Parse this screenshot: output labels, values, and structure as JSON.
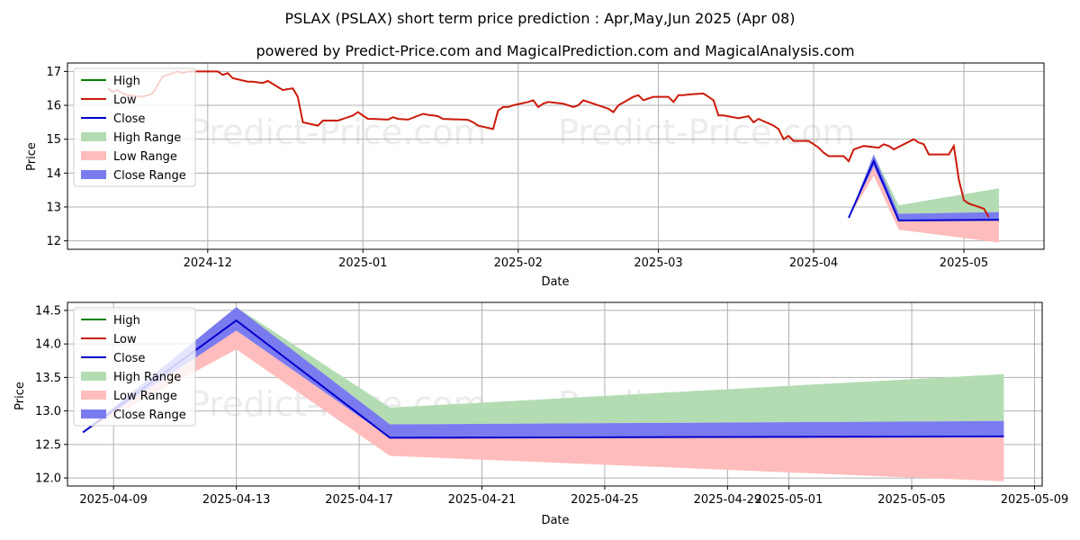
{
  "title": "PSLAX (PSLAX) short term price prediction : Apr,May,Jun 2025 (Apr 08)",
  "subtitle": "powered by Predict-Price.com and MagicalPrediction.com and MagicalAnalysis.com",
  "watermark": "Predict-Price.com",
  "colors": {
    "high": "#008000",
    "low": "#cc1a0a",
    "close": "#0000cc",
    "high_range": "#b3dcb3",
    "low_range": "#ffbcbc",
    "close_range": "#7b7bf0"
  },
  "chart_data": [
    {
      "type": "line",
      "xlabel": "Date",
      "ylabel": "Price",
      "x_ticks": [
        "2024-12",
        "2025-01",
        "2025-02",
        "2025-03",
        "2025-04",
        "2025-05"
      ],
      "x_tick_dates": [
        "2024-12-01",
        "2025-01-01",
        "2025-02-01",
        "2025-03-01",
        "2025-04-01",
        "2025-05-01"
      ],
      "xlim": [
        "2024-11-03",
        "2025-05-17"
      ],
      "y_ticks": [
        12,
        13,
        14,
        15,
        16,
        17
      ],
      "ylim": [
        11.75,
        17.25
      ],
      "grid": true,
      "legend": "upper left",
      "legend_labels": [
        "High",
        "Low",
        "Close",
        "High Range",
        "Low Range",
        "Close Range"
      ],
      "history": {
        "name": "Low",
        "points": [
          [
            "2024-11-11",
            16.5
          ],
          [
            "2024-11-12",
            16.4
          ],
          [
            "2024-11-13",
            16.45
          ],
          [
            "2024-11-14",
            16.35
          ],
          [
            "2024-11-15",
            16.3
          ],
          [
            "2024-11-18",
            16.25
          ],
          [
            "2024-11-19",
            16.3
          ],
          [
            "2024-11-20",
            16.35
          ],
          [
            "2024-11-21",
            16.6
          ],
          [
            "2024-11-22",
            16.85
          ],
          [
            "2024-11-25",
            17.0
          ],
          [
            "2024-11-26",
            16.95
          ],
          [
            "2024-11-27",
            17.0
          ],
          [
            "2024-11-29",
            17.0
          ],
          [
            "2024-12-02",
            17.0
          ],
          [
            "2024-12-03",
            17.0
          ],
          [
            "2024-12-04",
            16.9
          ],
          [
            "2024-12-05",
            16.95
          ],
          [
            "2024-12-06",
            16.8
          ],
          [
            "2024-12-09",
            16.7
          ],
          [
            "2024-12-10",
            16.7
          ],
          [
            "2024-12-11",
            16.68
          ],
          [
            "2024-12-12",
            16.66
          ],
          [
            "2024-12-13",
            16.72
          ],
          [
            "2024-12-16",
            16.45
          ],
          [
            "2024-12-17",
            16.48
          ],
          [
            "2024-12-18",
            16.5
          ],
          [
            "2024-12-19",
            16.25
          ],
          [
            "2024-12-20",
            15.5
          ],
          [
            "2024-12-23",
            15.4
          ],
          [
            "2024-12-24",
            15.55
          ],
          [
            "2024-12-26",
            15.55
          ],
          [
            "2024-12-27",
            15.55
          ],
          [
            "2024-12-30",
            15.7
          ],
          [
            "2024-12-31",
            15.8
          ],
          [
            "2025-01-02",
            15.6
          ],
          [
            "2025-01-03",
            15.6
          ],
          [
            "2025-01-06",
            15.58
          ],
          [
            "2025-01-07",
            15.65
          ],
          [
            "2025-01-08",
            15.6
          ],
          [
            "2025-01-10",
            15.58
          ],
          [
            "2025-01-13",
            15.75
          ],
          [
            "2025-01-14",
            15.72
          ],
          [
            "2025-01-15",
            15.7
          ],
          [
            "2025-01-16",
            15.68
          ],
          [
            "2025-01-17",
            15.6
          ],
          [
            "2025-01-21",
            15.58
          ],
          [
            "2025-01-22",
            15.57
          ],
          [
            "2025-01-23",
            15.5
          ],
          [
            "2025-01-24",
            15.4
          ],
          [
            "2025-01-27",
            15.3
          ],
          [
            "2025-01-28",
            15.85
          ],
          [
            "2025-01-29",
            15.95
          ],
          [
            "2025-01-30",
            15.95
          ],
          [
            "2025-01-31",
            16.0
          ],
          [
            "2025-02-03",
            16.1
          ],
          [
            "2025-02-04",
            16.15
          ],
          [
            "2025-02-05",
            15.95
          ],
          [
            "2025-02-06",
            16.05
          ],
          [
            "2025-02-07",
            16.1
          ],
          [
            "2025-02-10",
            16.05
          ],
          [
            "2025-02-11",
            16.0
          ],
          [
            "2025-02-12",
            15.95
          ],
          [
            "2025-02-13",
            16.0
          ],
          [
            "2025-02-14",
            16.15
          ],
          [
            "2025-02-18",
            15.95
          ],
          [
            "2025-02-19",
            15.9
          ],
          [
            "2025-02-20",
            15.8
          ],
          [
            "2025-02-21",
            16.0
          ],
          [
            "2025-02-24",
            16.25
          ],
          [
            "2025-02-25",
            16.3
          ],
          [
            "2025-02-26",
            16.15
          ],
          [
            "2025-02-27",
            16.2
          ],
          [
            "2025-02-28",
            16.25
          ],
          [
            "2025-03-03",
            16.25
          ],
          [
            "2025-03-04",
            16.1
          ],
          [
            "2025-03-05",
            16.3
          ],
          [
            "2025-03-06",
            16.3
          ],
          [
            "2025-03-07",
            16.32
          ],
          [
            "2025-03-10",
            16.35
          ],
          [
            "2025-03-11",
            16.25
          ],
          [
            "2025-03-12",
            16.15
          ],
          [
            "2025-03-13",
            15.7
          ],
          [
            "2025-03-14",
            15.7
          ],
          [
            "2025-03-17",
            15.62
          ],
          [
            "2025-03-18",
            15.65
          ],
          [
            "2025-03-19",
            15.68
          ],
          [
            "2025-03-20",
            15.5
          ],
          [
            "2025-03-21",
            15.6
          ],
          [
            "2025-03-24",
            15.4
          ],
          [
            "2025-03-25",
            15.3
          ],
          [
            "2025-03-26",
            15.0
          ],
          [
            "2025-03-27",
            15.1
          ],
          [
            "2025-03-28",
            14.95
          ],
          [
            "2025-03-31",
            14.95
          ]
        ],
        "tail_note": "",
        "points_apr": [
          [
            "2025-04-01",
            14.85
          ],
          [
            "2025-04-02",
            14.75
          ],
          [
            "2025-04-03",
            14.6
          ],
          [
            "2025-04-04",
            14.5
          ],
          [
            "2025-04-07",
            14.5
          ],
          [
            "2025-04-08",
            14.35
          ],
          [
            "2025-04-09",
            14.7
          ],
          [
            "2025-04-10",
            14.75
          ],
          [
            "2025-04-11",
            14.8
          ],
          [
            "2025-04-14",
            14.75
          ],
          [
            "2025-04-15",
            14.85
          ],
          [
            "2025-04-16",
            14.8
          ],
          [
            "2025-04-17",
            14.7
          ],
          [
            "2025-04-21",
            15.0
          ],
          [
            "2025-04-22",
            14.9
          ],
          [
            "2025-04-23",
            14.85
          ],
          [
            "2025-04-24",
            14.55
          ],
          [
            "2025-04-25",
            14.55
          ],
          [
            "2025-04-28",
            14.55
          ],
          [
            "2025-04-29",
            14.8
          ],
          [
            "2025-04-30",
            13.8
          ],
          [
            "2025-05-01",
            13.2
          ],
          [
            "2025-05-02",
            13.1
          ],
          [
            "2025-05-05",
            12.95
          ],
          [
            "2025-05-06",
            12.7
          ]
        ]
      }
    },
    {
      "type": "line",
      "xlabel": "Date",
      "ylabel": "Price",
      "x_ticks": [
        "2025-04-09",
        "2025-04-13",
        "2025-04-17",
        "2025-04-21",
        "2025-04-25",
        "2025-04-29",
        "2025-05-01",
        "2025-05-05",
        "2025-05-09"
      ],
      "x_tick_dates": [
        "2025-04-09",
        "2025-04-13",
        "2025-04-17",
        "2025-04-21",
        "2025-04-25",
        "2025-04-29",
        "2025-05-01",
        "2025-05-05",
        "2025-05-09"
      ],
      "xlim": [
        "2025-04-07T12:00",
        "2025-05-09T06:00"
      ],
      "y_ticks": [
        12.0,
        12.5,
        13.0,
        13.5,
        14.0,
        14.5
      ],
      "y_tick_labels": [
        "12.0",
        "12.5",
        "13.0",
        "13.5",
        "14.0",
        "14.5"
      ],
      "ylim": [
        11.88,
        14.62
      ],
      "grid": true,
      "legend": "upper left",
      "legend_labels": [
        "High",
        "Low",
        "Close",
        "High Range",
        "Low Range",
        "Close Range"
      ]
    }
  ],
  "forecast": {
    "dates": [
      "2025-04-08",
      "2025-04-13",
      "2025-04-18",
      "2025-05-08"
    ],
    "close": [
      12.68,
      14.35,
      12.6,
      12.62
    ],
    "close_range_upper": [
      12.68,
      14.55,
      12.8,
      12.85
    ],
    "close_range_lower": [
      12.68,
      14.2,
      12.6,
      12.62
    ],
    "high_range_upper": [
      12.68,
      14.55,
      13.05,
      13.55
    ],
    "high_range_lower": [
      12.68,
      14.3,
      12.8,
      12.85
    ],
    "low_range_upper": [
      12.68,
      14.2,
      12.6,
      12.62
    ],
    "low_range_lower": [
      12.68,
      13.92,
      12.33,
      11.95
    ]
  }
}
